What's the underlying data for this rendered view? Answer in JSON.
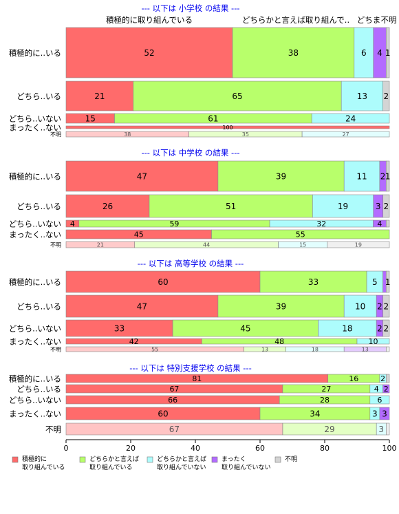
{
  "chart_data": {
    "type": "bar",
    "orientation": "horizontal",
    "stacked": true,
    "xlim": [
      0,
      100
    ],
    "x_ticks": [
      "0",
      "20",
      "40",
      "60",
      "80",
      "100"
    ],
    "colors": [
      "#ff6b6b",
      "#b8ff6b",
      "#adfcfc",
      "#b36bff",
      "#d4d4d4"
    ],
    "legend": {
      "placement": "bottom",
      "entries": [
        [
          "積極的に",
          "取り組んでいる"
        ],
        [
          "どちらかと言えば",
          "取り組んでいる"
        ],
        [
          "どちらかと言えば",
          "取り組んでいない"
        ],
        [
          "まったく",
          "取り組んでいない"
        ],
        [
          "不明"
        ]
      ]
    },
    "top_headers": [
      "積極的に取り組んでいる",
      "どちらかと言えば取り組んで..",
      "どちま",
      "不明"
    ],
    "panels": [
      {
        "title": "--- 以下は 小学校 の結果 ---",
        "rows": [
          {
            "label": "積極的に..いる",
            "values": [
              52,
              38,
              6,
              4,
              1
            ],
            "labels": [
              "52",
              "38",
              "6",
              "4",
              "1"
            ],
            "size": "large"
          },
          {
            "label": "どちら..いる",
            "values": [
              21,
              65,
              13,
              0,
              2
            ],
            "labels": [
              "21",
              "65",
              "13",
              "",
              "2"
            ],
            "size": "large"
          },
          {
            "label": "どちら..いない",
            "values": [
              15,
              61,
              24,
              0,
              0
            ],
            "labels": [
              "15",
              "61",
              "24",
              "",
              ""
            ],
            "size": "small"
          },
          {
            "label": "まったく..ない",
            "values": [
              100,
              0,
              0,
              0,
              0
            ],
            "labels": [
              "100",
              "",
              "",
              "",
              ""
            ],
            "size": "tiny"
          },
          {
            "label": "不明",
            "values": [
              38,
              35,
              27,
              0,
              0
            ],
            "labels": [
              "38",
              "35",
              "27",
              "",
              ""
            ],
            "size": "unknown"
          }
        ]
      },
      {
        "title": "--- 以下は 中学校 の結果 ---",
        "rows": [
          {
            "label": "積極的に..いる",
            "values": [
              47,
              39,
              11,
              2,
              1
            ],
            "labels": [
              "47",
              "39",
              "11",
              "2",
              "1"
            ],
            "size": "large"
          },
          {
            "label": "どちら..いる",
            "values": [
              26,
              51,
              19,
              3,
              2
            ],
            "labels": [
              "26",
              "51",
              "19",
              "3",
              "2"
            ],
            "size": "large"
          },
          {
            "label": "どちら..いない",
            "values": [
              4,
              59,
              32,
              4,
              1
            ],
            "labels": [
              "4",
              "59",
              "32",
              "4",
              ""
            ],
            "size": "small"
          },
          {
            "label": "まったく..ない",
            "values": [
              45,
              55,
              0,
              0,
              0
            ],
            "labels": [
              "45",
              "55",
              "",
              "",
              ""
            ],
            "size": "small"
          },
          {
            "label": "不明",
            "values": [
              21,
              44,
              15,
              0,
              19
            ],
            "labels": [
              "21",
              "44",
              "15",
              "",
              "19"
            ],
            "size": "unknown"
          }
        ]
      },
      {
        "title": "--- 以下は 高等学校 の結果 ---",
        "rows": [
          {
            "label": "積極的に..いる",
            "values": [
              60,
              33,
              5,
              1,
              1
            ],
            "labels": [
              "60",
              "33",
              "5",
              "",
              "1"
            ],
            "size": "large"
          },
          {
            "label": "どちら..いる",
            "values": [
              47,
              39,
              10,
              2,
              2
            ],
            "labels": [
              "47",
              "39",
              "10",
              "2",
              "2"
            ],
            "size": "large"
          },
          {
            "label": "どちら..いない",
            "values": [
              33,
              45,
              18,
              2,
              2
            ],
            "labels": [
              "33",
              "45",
              "18",
              "2",
              "2"
            ],
            "size": "large"
          },
          {
            "label": "まったく..ない",
            "values": [
              42,
              48,
              10,
              0,
              0
            ],
            "labels": [
              "42",
              "48",
              "10",
              "",
              ""
            ],
            "size": "small"
          },
          {
            "label": "不明",
            "values": [
              55,
              13,
              18,
              13,
              1
            ],
            "labels": [
              "55",
              "13",
              "18",
              "13",
              ""
            ],
            "size": "unknown"
          }
        ]
      },
      {
        "title": "--- 以下は 特別支援学校 の結果 ---",
        "rows": [
          {
            "label": "積極的に..いる",
            "values": [
              81,
              16,
              2,
              0,
              1
            ],
            "labels": [
              "81",
              "16",
              "2",
              "",
              ""
            ],
            "size": "small"
          },
          {
            "label": "どちら..いる",
            "values": [
              67,
              27,
              4,
              2,
              0
            ],
            "labels": [
              "67",
              "27",
              "4",
              "2",
              ""
            ],
            "size": "small"
          },
          {
            "label": "どちら..いない",
            "values": [
              66,
              28,
              6,
              0,
              0
            ],
            "labels": [
              "66",
              "28",
              "6",
              "",
              ""
            ],
            "size": "small"
          },
          {
            "label": "まったく..ない",
            "values": [
              60,
              34,
              3,
              3,
              0
            ],
            "labels": [
              "60",
              "34",
              "3",
              "3",
              ""
            ],
            "size": "medium"
          },
          {
            "label": "不明",
            "values": [
              67,
              29,
              3,
              0,
              1
            ],
            "labels": [
              "67",
              "29",
              "3",
              "",
              ""
            ],
            "size": "medium-unknown"
          }
        ]
      }
    ]
  }
}
